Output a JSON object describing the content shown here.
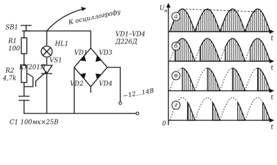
{
  "schematic": {
    "sb1": "SB1",
    "r1": "R1",
    "r1_value": "100",
    "r2": "R2",
    "r2_value": "4,7k",
    "hl1": "HL1",
    "vs1": "VS1",
    "vs1_type": "КУ201Л",
    "scope": "К осциллографу",
    "bridge": "VD1–VD4",
    "bridge_type": "Д226Д",
    "vd1": "VD1",
    "vd2": "VD2",
    "vd3": "VD3",
    "vd4": "VD4",
    "supply": "~12...14В",
    "c1": "C1 100мк×25В"
  },
  "plots": {
    "y_label": "U",
    "y_label_sub": "н",
    "origin": "0",
    "panels": [
      {
        "label": "а",
        "t": "t"
      },
      {
        "label": "б",
        "t": "t"
      },
      {
        "label": "в",
        "t": "t"
      },
      {
        "label": "г",
        "t": "t"
      }
    ]
  }
}
